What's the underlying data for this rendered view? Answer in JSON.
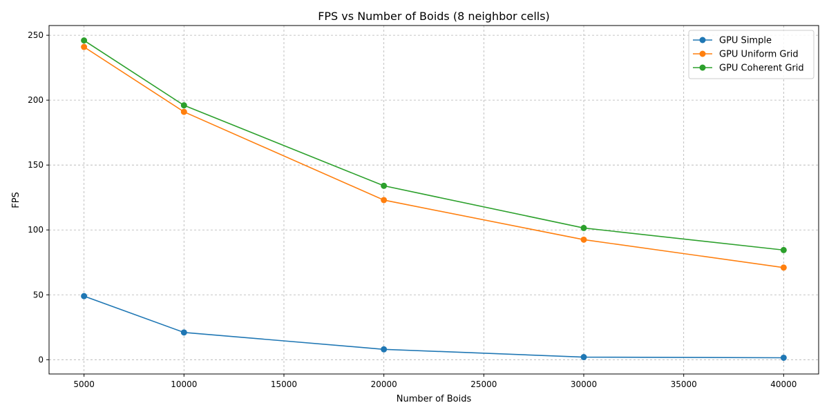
{
  "chart_data": {
    "type": "line",
    "title": "FPS vs Number of Boids (8 neighbor cells)",
    "xlabel": "Number of Boids",
    "ylabel": "FPS",
    "x": [
      5000,
      10000,
      20000,
      30000,
      40000
    ],
    "xlim": [
      3250,
      41750
    ],
    "ylim": [
      -11,
      257.5
    ],
    "xticks": [
      5000,
      10000,
      15000,
      20000,
      25000,
      30000,
      35000,
      40000
    ],
    "yticks": [
      0,
      50,
      100,
      150,
      200,
      250
    ],
    "grid": true,
    "legend_position": "top-right",
    "series": [
      {
        "name": "GPU Simple",
        "color": "#1f77b4",
        "values": [
          49,
          21,
          8,
          2,
          1.5
        ]
      },
      {
        "name": "GPU Uniform Grid",
        "color": "#ff7f0e",
        "values": [
          241,
          191,
          123,
          92.5,
          71
        ]
      },
      {
        "name": "GPU Coherent Grid",
        "color": "#2ca02c",
        "values": [
          246,
          196,
          134,
          101.5,
          84.5
        ]
      }
    ]
  }
}
